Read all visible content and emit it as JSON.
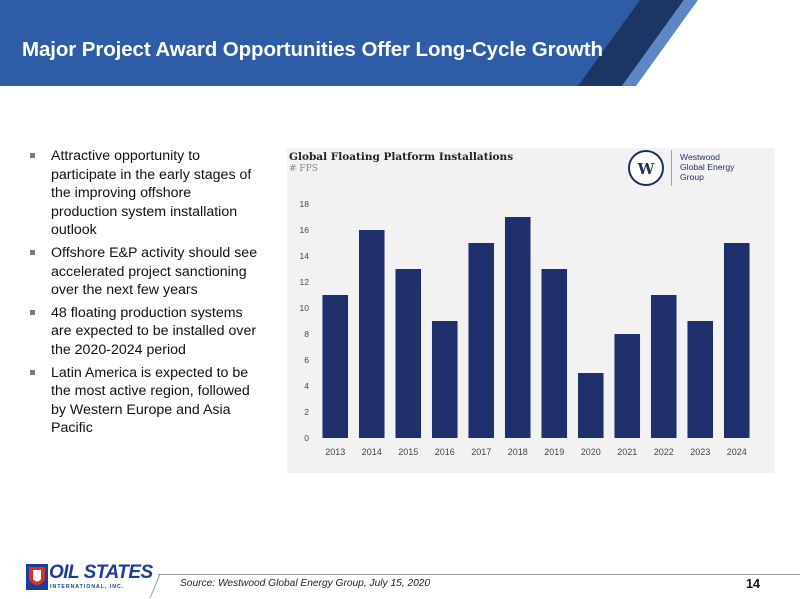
{
  "slide": {
    "title": "Major Project Award Opportunities Offer Long-Cycle Growth",
    "page_number": "14",
    "source": "Source: Westwood Global Energy Group, July 15, 2020"
  },
  "bullets": [
    "Attractive opportunity to participate in the early stages of the improving offshore production system installation outlook",
    "Offshore E&P activity should see accelerated project sanctioning over the next few years",
    "48 floating production systems are expected to be installed over the 2020-2024 period",
    "Latin America is expected to be the most active region, followed by Western Europe and Asia Pacific"
  ],
  "logos": {
    "westwood_mark": "W",
    "westwood_text": "Westwood\nGlobal Energy\nGroup",
    "company_name": "OIL STATES",
    "company_sub": "INTERNATIONAL, INC."
  },
  "colors": {
    "header_blue": "#2e5ca6",
    "header_dark": "#1b3665",
    "bar": "#1f2f6b",
    "panel": "#f2f2f2",
    "logo_red": "#d6322b",
    "logo_blue": "#1d3d99"
  },
  "chart_data": {
    "type": "bar",
    "title": "Global Floating Platform Installations",
    "subtitle": "# FPS",
    "categories": [
      "2013",
      "2014",
      "2015",
      "2016",
      "2017",
      "2018",
      "2019",
      "2020",
      "2021",
      "2022",
      "2023",
      "2024"
    ],
    "values": [
      11,
      16,
      13,
      9,
      15,
      17,
      13,
      5,
      8,
      11,
      9,
      15
    ],
    "yticks": [
      "0",
      "2",
      "4",
      "6",
      "8",
      "10",
      "12",
      "14",
      "16",
      "18"
    ],
    "ylim": [
      0,
      18
    ],
    "grid": false,
    "legend": "none"
  }
}
